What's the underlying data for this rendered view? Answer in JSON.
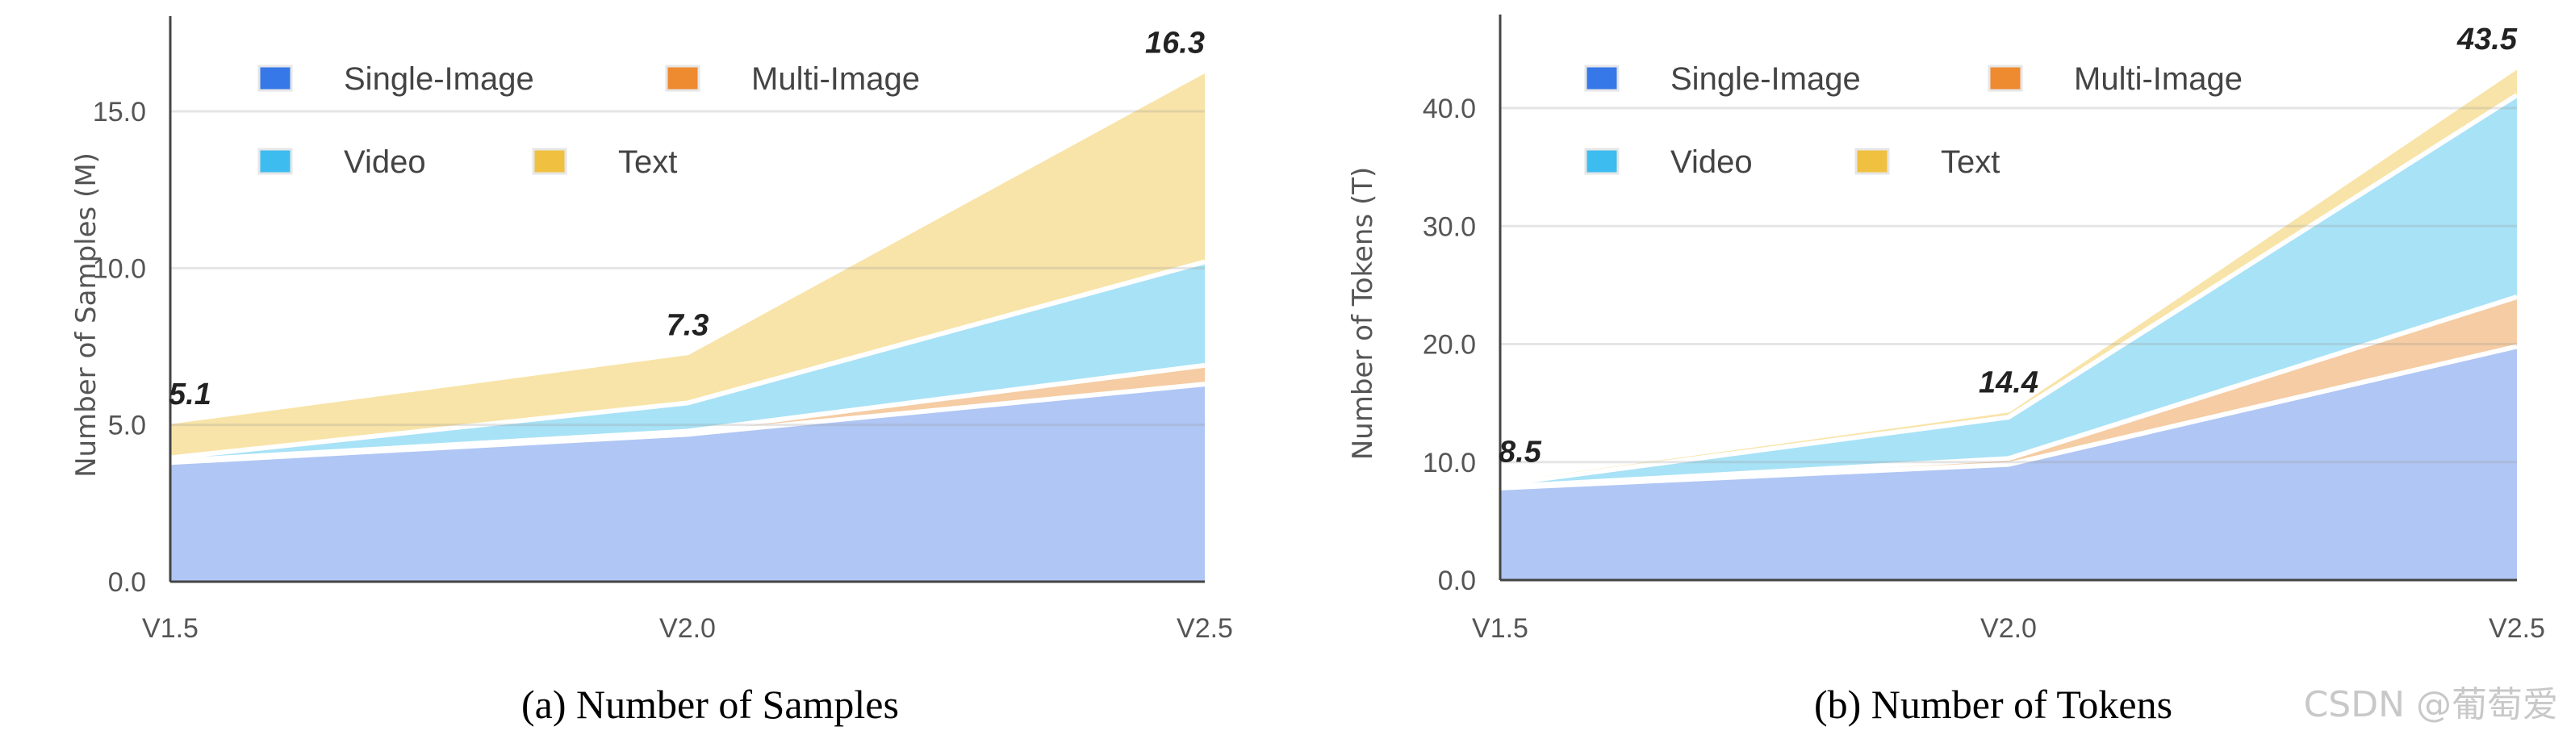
{
  "colors": {
    "Single-Image": {
      "legend": "#3778e8",
      "fill": "#b0c6f4"
    },
    "Multi-Image": {
      "legend": "#ee8a30",
      "fill": "#f5cca3"
    },
    "Video": {
      "legend": "#3dbcf0",
      "fill": "#a8e2f6"
    },
    "Text": {
      "legend": "#f0c040",
      "fill": "#f8e4a8"
    }
  },
  "watermark": "CSDN @葡萄爱",
  "chart_data": [
    {
      "type": "area",
      "stacked": true,
      "caption": "(a) Number of Samples",
      "ylabel": "Number of Samples (M)",
      "categories": [
        "V1.5",
        "V2.0",
        "V2.5"
      ],
      "ylim": [
        0,
        18
      ],
      "yticks": [
        "0.0",
        "5.0",
        "10.0",
        "15.0"
      ],
      "ytick_values": [
        0,
        5,
        10,
        15
      ],
      "grid": true,
      "legend_placement": "top-left",
      "series": [
        {
          "name": "Single-Image",
          "values": [
            3.8,
            4.7,
            6.3
          ]
        },
        {
          "name": "Multi-Image",
          "values": [
            0.05,
            0.1,
            0.6
          ]
        },
        {
          "name": "Video",
          "values": [
            0.1,
            0.9,
            3.3
          ]
        },
        {
          "name": "Text",
          "values": [
            1.15,
            1.6,
            6.1
          ]
        }
      ],
      "totals": [
        "5.1",
        "7.3",
        "16.3"
      ]
    },
    {
      "type": "area",
      "stacked": true,
      "caption": "(b) Number of Tokens",
      "ylabel": "Number of Tokens (T)",
      "categories": [
        "V1.5",
        "V2.0",
        "V2.5"
      ],
      "ylim": [
        0,
        48
      ],
      "yticks": [
        "0.0",
        "10.0",
        "20.0",
        "30.0",
        "40.0"
      ],
      "ytick_values": [
        0,
        10,
        20,
        30,
        40
      ],
      "grid": true,
      "legend_placement": "top-left",
      "series": [
        {
          "name": "Single-Image",
          "values": [
            7.8,
            9.8,
            19.8
          ]
        },
        {
          "name": "Multi-Image",
          "values": [
            0.1,
            0.5,
            4.2
          ]
        },
        {
          "name": "Video",
          "values": [
            0.2,
            3.5,
            17.1
          ]
        },
        {
          "name": "Text",
          "values": [
            0.4,
            0.6,
            2.4
          ]
        }
      ],
      "totals": [
        "8.5",
        "14.4",
        "43.5"
      ]
    }
  ]
}
